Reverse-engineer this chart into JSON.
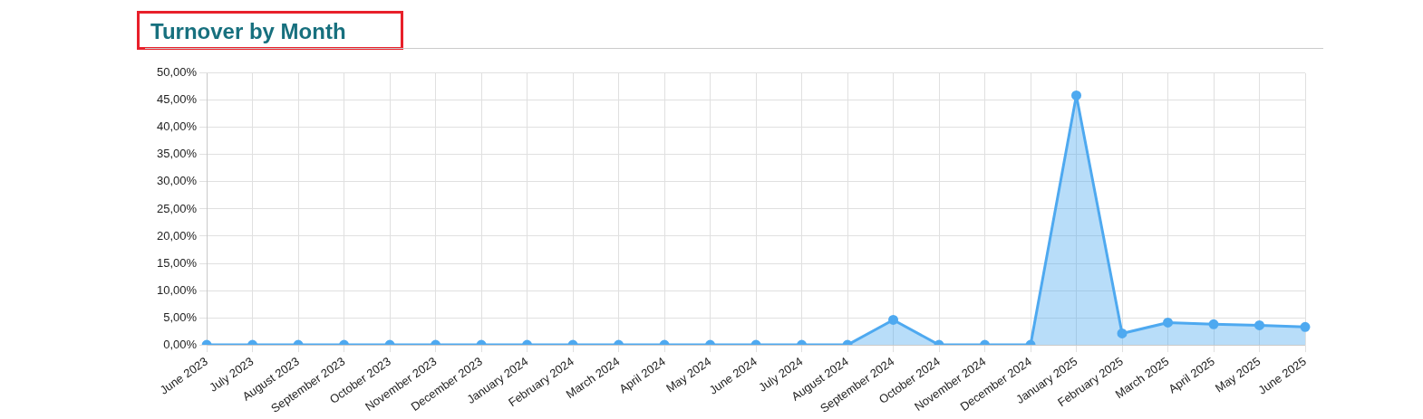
{
  "chart_data": {
    "type": "area",
    "title": "Turnover by Month",
    "categories": [
      "June 2023",
      "July 2023",
      "August 2023",
      "September 2023",
      "October 2023",
      "November 2023",
      "December 2023",
      "January 2024",
      "February 2024",
      "March 2024",
      "April 2024",
      "May 2024",
      "June 2024",
      "July 2024",
      "August 2024",
      "September 2024",
      "October 2024",
      "November 2024",
      "December 2024",
      "January 2025",
      "February 2025",
      "March 2025",
      "April 2025",
      "May 2025",
      "June 2025"
    ],
    "series": [
      {
        "color": "#4ea9f0",
        "values": [
          0,
          0,
          0,
          0,
          0,
          0,
          0,
          0,
          0,
          0,
          0,
          0,
          0,
          0,
          0,
          4.6,
          0,
          0,
          0,
          45.9,
          2.1,
          4.1,
          3.8,
          3.6,
          3.3
        ]
      }
    ],
    "ylim": [
      0,
      50
    ],
    "yticks": [
      {
        "value": 0,
        "label": "0,00%"
      },
      {
        "value": 5,
        "label": "5,00%"
      },
      {
        "value": 10,
        "label": "10,00%"
      },
      {
        "value": 15,
        "label": "15,00%"
      },
      {
        "value": 20,
        "label": "20,00%"
      },
      {
        "value": 25,
        "label": "25,00%"
      },
      {
        "value": 30,
        "label": "30,00%"
      },
      {
        "value": 35,
        "label": "35,00%"
      },
      {
        "value": 40,
        "label": "40,00%"
      },
      {
        "value": 45,
        "label": "45,00%"
      },
      {
        "value": 50,
        "label": "50,00%"
      }
    ],
    "grid": true,
    "legend": false,
    "marker": "circle"
  }
}
